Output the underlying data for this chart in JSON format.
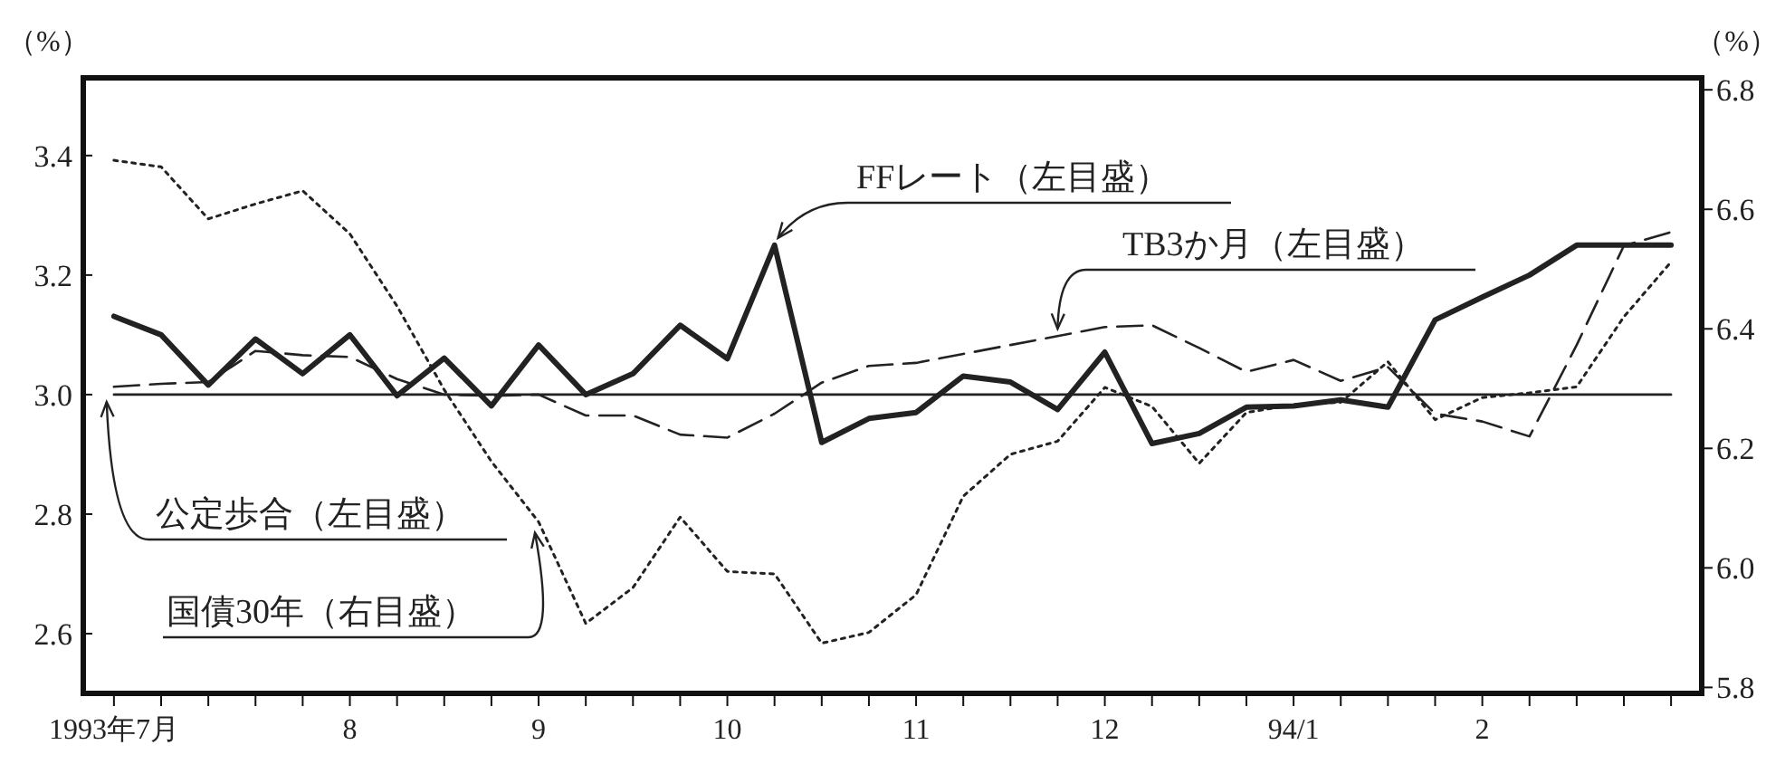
{
  "chart_data": {
    "type": "line",
    "legend": "center",
    "ylabel": "（%）",
    "y2label": "（%）",
    "categories": [
      "1993年7月",
      null,
      null,
      null,
      null,
      "8",
      null,
      null,
      null,
      "9",
      null,
      null,
      null,
      "10",
      null,
      null,
      null,
      "11",
      null,
      null,
      null,
      "12",
      null,
      null,
      null,
      "94/1",
      null,
      null,
      null,
      "2",
      null,
      null,
      null,
      null
    ],
    "ylim": [
      2.5,
      3.53
    ],
    "yticks": [
      2.6,
      2.8,
      {
        "value": 3.0,
        "label": "3.0"
      },
      3.2,
      3.4
    ],
    "y2lim": [
      5.79,
      6.82
    ],
    "y2ticks": [
      5.8,
      {
        "value": 6.0,
        "label": "6.0"
      },
      6.2,
      6.4,
      6.6,
      6.8
    ],
    "series": [
      {
        "name": "FFレート（左目盛）",
        "color": "#222222",
        "line_style": "solid",
        "values": [
          3.131,
          3.1,
          3.016,
          3.093,
          3.035,
          3.1,
          2.998,
          3.061,
          2.981,
          3.083,
          3.0,
          3.035,
          3.116,
          3.06,
          3.25,
          2.92,
          2.96,
          2.97,
          3.031,
          3.021,
          2.975,
          3.071,
          2.918,
          2.935,
          2.979,
          2.981,
          2.991,
          2.979,
          3.125,
          3.163,
          3.2,
          3.25,
          3.25,
          3.25
        ]
      },
      {
        "name": "TB3か月（左目盛）",
        "color": "#222222",
        "line_style": "dashed",
        "values": [
          3.013,
          3.018,
          3.021,
          3.073,
          3.066,
          3.063,
          3.026,
          3.0,
          2.998,
          3.0,
          2.965,
          2.965,
          2.933,
          2.928,
          2.968,
          3.02,
          3.048,
          3.053,
          3.068,
          3.083,
          3.098,
          3.113,
          3.116,
          3.078,
          3.038,
          3.058,
          3.023,
          3.046,
          2.968,
          2.955,
          2.93,
          3.083,
          3.249,
          3.272
        ]
      },
      {
        "name": "公定歩合（左目盛）",
        "color": "#222222",
        "line_style": "solid",
        "values": [
          3.0,
          3.0,
          3.0,
          3.0,
          3.0,
          3.0,
          3.0,
          3.0,
          3.0,
          3.0,
          3.0,
          3.0,
          3.0,
          3.0,
          3.0,
          3.0,
          3.0,
          3.0,
          3.0,
          3.0,
          3.0,
          3.0,
          3.0,
          3.0,
          3.0,
          3.0,
          3.0,
          3.0,
          3.0,
          3.0,
          3.0,
          3.0,
          3.0,
          3.0
        ]
      },
      {
        "name": "国債30年（右目盛）",
        "color": "#222222",
        "line_style": "dotted",
        "axis": "y2",
        "values": [
          6.682,
          6.671,
          6.584,
          6.609,
          6.631,
          6.559,
          6.438,
          6.298,
          6.178,
          6.077,
          5.907,
          5.967,
          6.085,
          5.994,
          5.99,
          5.874,
          5.892,
          5.955,
          6.12,
          6.19,
          6.212,
          6.302,
          6.27,
          6.175,
          6.26,
          6.273,
          6.277,
          6.345,
          6.248,
          6.285,
          6.293,
          6.303,
          6.42,
          6.512
        ]
      }
    ]
  }
}
